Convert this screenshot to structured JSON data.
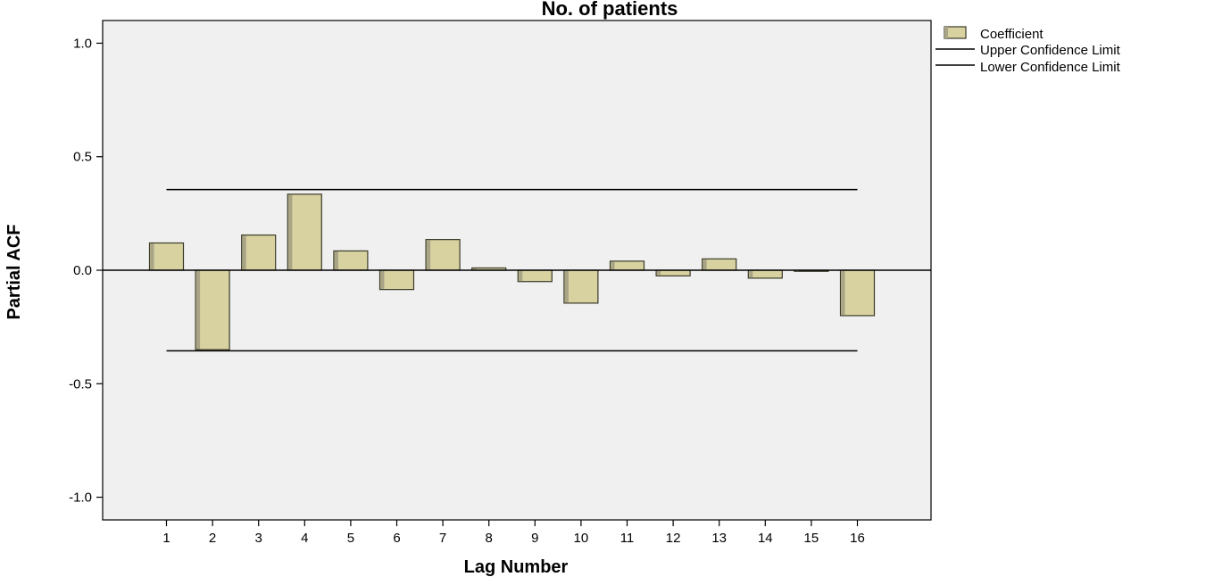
{
  "chart_data": {
    "type": "bar",
    "title": "No. of patients",
    "xlabel": "Lag Number",
    "ylabel": "Partial ACF",
    "categories": [
      "1",
      "2",
      "3",
      "4",
      "5",
      "6",
      "7",
      "8",
      "9",
      "10",
      "11",
      "12",
      "13",
      "14",
      "15",
      "16"
    ],
    "series": [
      {
        "name": "Coefficient",
        "values": [
          0.12,
          -0.35,
          0.155,
          0.335,
          0.085,
          -0.085,
          0.135,
          0.01,
          -0.05,
          -0.145,
          0.04,
          -0.025,
          0.05,
          -0.035,
          -0.005,
          -0.2
        ]
      }
    ],
    "upper_confidence_limit": 0.355,
    "lower_confidence_limit": -0.355,
    "yticks": [
      "-1.0",
      "-0.5",
      "0.0",
      "0.5",
      "1.0"
    ],
    "ylim": [
      -1.1,
      1.1
    ],
    "grid": false,
    "legend": {
      "placement": "top-right",
      "entries": [
        "Coefficient",
        "Upper Confidence Limit",
        "Lower Confidence Limit"
      ]
    },
    "colors": {
      "bar_fill": "#d7d2a0",
      "bar_stroke": "#3a3a2a",
      "bar_shadow": "#a9a486",
      "plot_bg": "#f0f0f0",
      "line": "#000000"
    }
  }
}
